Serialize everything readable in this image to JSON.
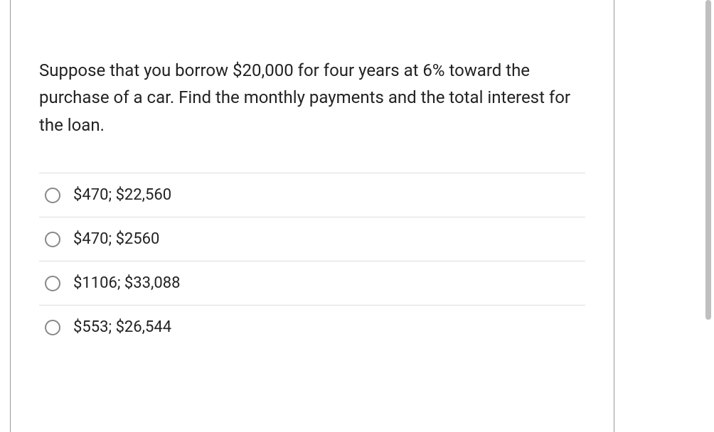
{
  "question": {
    "text": "Suppose that you borrow $20,000 for four years at 6% toward the purchase of a car. Find the monthly payments and the total interest for the loan."
  },
  "options": [
    {
      "label": "$470; $22,560"
    },
    {
      "label": "$470; $2560"
    },
    {
      "label": "$1106; $33,088"
    },
    {
      "label": "$553; $26,544"
    }
  ],
  "colors": {
    "text": "#222222",
    "border": "#dddddd",
    "radio_border": "#888888",
    "scrollbar": "#bfbfbf",
    "container_border": "#999999"
  },
  "typography": {
    "question_fontsize": 24,
    "option_fontsize": 22,
    "font_family": "sans-serif"
  }
}
